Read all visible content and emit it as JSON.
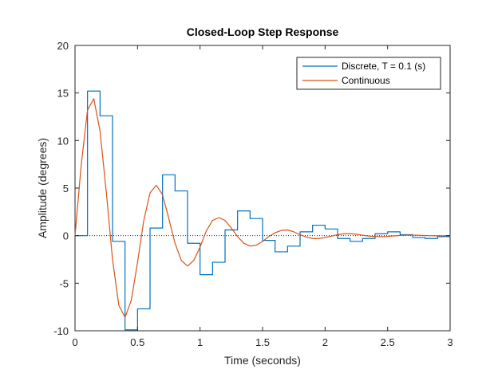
{
  "chart_data": {
    "type": "line",
    "title": "Closed-Loop Step Response",
    "xlabel": "Time (seconds)",
    "ylabel": "Amplitude (degrees)",
    "xlim": [
      0,
      3
    ],
    "ylim": [
      -10,
      20
    ],
    "xticks": [
      0,
      0.5,
      1,
      1.5,
      2,
      2.5,
      3
    ],
    "xtick_labels": [
      "0",
      "0.5",
      "1",
      "1.5",
      "2",
      "2.5",
      "3"
    ],
    "yticks": [
      -10,
      -5,
      0,
      5,
      10,
      15,
      20
    ],
    "ytick_labels": [
      "-10",
      "-5",
      "0",
      "5",
      "10",
      "15",
      "20"
    ],
    "grid": false,
    "legend_position": "top-right",
    "zero_reference_line": true,
    "series": [
      {
        "name": "Discrete, T = 0.1 (s)",
        "style": "stairs",
        "color": "#0072BD",
        "x": [
          0,
          0.1,
          0.2,
          0.3,
          0.4,
          0.5,
          0.6,
          0.7,
          0.8,
          0.9,
          1.0,
          1.1,
          1.2,
          1.3,
          1.4,
          1.5,
          1.6,
          1.7,
          1.8,
          1.9,
          2.0,
          2.1,
          2.2,
          2.3,
          2.4,
          2.5,
          2.6,
          2.7,
          2.8,
          2.9,
          3.0
        ],
        "y": [
          0,
          15.2,
          12.6,
          -0.6,
          -9.9,
          -7.7,
          0.8,
          6.4,
          4.7,
          -0.8,
          -4.1,
          -2.8,
          0.6,
          2.6,
          1.8,
          -0.5,
          -1.7,
          -1.1,
          0.4,
          1.1,
          0.7,
          -0.3,
          -0.6,
          -0.3,
          0.2,
          0.4,
          0.1,
          -0.2,
          -0.3,
          -0.1,
          0.1
        ]
      },
      {
        "name": "Continuous",
        "style": "line",
        "color": "#D95319",
        "x": [
          0,
          0.05,
          0.1,
          0.15,
          0.2,
          0.25,
          0.3,
          0.35,
          0.4,
          0.45,
          0.5,
          0.55,
          0.6,
          0.65,
          0.7,
          0.75,
          0.8,
          0.85,
          0.9,
          0.95,
          1.0,
          1.05,
          1.1,
          1.15,
          1.2,
          1.25,
          1.3,
          1.35,
          1.4,
          1.45,
          1.5,
          1.55,
          1.6,
          1.65,
          1.7,
          1.75,
          1.8,
          1.85,
          1.9,
          1.95,
          2.0,
          2.05,
          2.1,
          2.15,
          2.2,
          2.25,
          2.3,
          2.35,
          2.4,
          2.45,
          2.5,
          2.55,
          2.6,
          2.65,
          2.7,
          2.75,
          2.8,
          2.85,
          2.9,
          2.95,
          3.0
        ],
        "y": [
          0,
          7.5,
          13.2,
          14.4,
          11.0,
          4.6,
          -2.5,
          -7.3,
          -8.6,
          -6.8,
          -2.8,
          1.6,
          4.5,
          5.3,
          4.3,
          1.8,
          -0.8,
          -2.6,
          -3.2,
          -2.6,
          -1.2,
          0.5,
          1.6,
          1.9,
          1.6,
          0.8,
          -0.1,
          -0.8,
          -1.1,
          -1.0,
          -0.6,
          -0.1,
          0.3,
          0.55,
          0.6,
          0.4,
          0.1,
          -0.15,
          -0.3,
          -0.3,
          -0.2,
          -0.05,
          0.1,
          0.2,
          0.2,
          0.15,
          0.05,
          -0.05,
          -0.1,
          -0.1,
          -0.08,
          -0.03,
          0.02,
          0.05,
          0.05,
          0.04,
          0.01,
          -0.01,
          -0.02,
          -0.02,
          -0.01
        ]
      }
    ]
  }
}
